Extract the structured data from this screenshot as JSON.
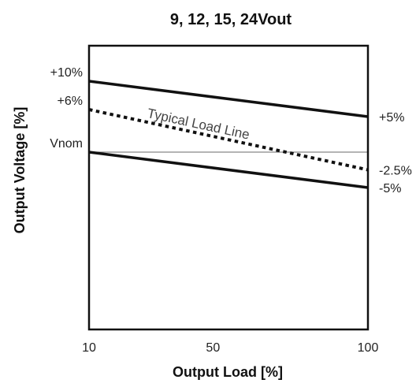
{
  "chart_data": {
    "type": "line",
    "title": "9, 12, 15, 24Vout",
    "xlabel": "Output Load [%]",
    "ylabel": "Output Voltage [%]",
    "xlim": [
      10,
      100
    ],
    "ylim": [
      -25,
      15
    ],
    "x_ticks": [
      {
        "value": 10,
        "label": "10"
      },
      {
        "value": 50,
        "label": "50"
      },
      {
        "value": 100,
        "label": "100"
      }
    ],
    "y_labels_left": [
      {
        "value": 10,
        "label": "+10%"
      },
      {
        "value": 6,
        "label": "+6%"
      },
      {
        "value": 0,
        "label": "Vnom"
      }
    ],
    "y_labels_right": [
      {
        "value": 5,
        "label": "+5%"
      },
      {
        "value": -2.5,
        "label": "-2.5%"
      },
      {
        "value": -5,
        "label": "-5%"
      }
    ],
    "reference_line": {
      "value": 0,
      "color": "#888888"
    },
    "series": [
      {
        "x": [
          10,
          100
        ],
        "values": [
          10,
          5
        ],
        "style": "solid",
        "color": "#111111"
      },
      {
        "name": "Typical Load Line",
        "x": [
          10,
          100
        ],
        "values": [
          6,
          -2.5
        ],
        "style": "dotted",
        "color": "#111111"
      },
      {
        "x": [
          10,
          100
        ],
        "values": [
          0,
          -5
        ],
        "style": "solid",
        "color": "#111111"
      }
    ],
    "annotation": {
      "text": "Typical Load Line",
      "series_index": 1
    },
    "grid": false,
    "legend": "none"
  }
}
